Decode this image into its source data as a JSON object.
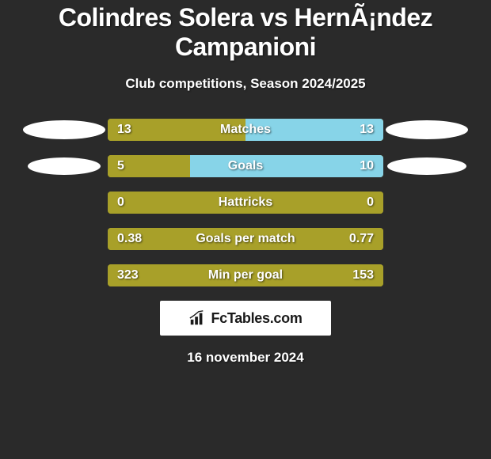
{
  "title": "Colindres Solera vs HernÃ¡ndez Campanioni",
  "subtitle": "Club competitions, Season 2024/2025",
  "colors": {
    "background": "#2a2a2a",
    "bar_left": "#a8a029",
    "bar_right": "#87d4e8",
    "text": "#ffffff",
    "avatar": "#ffffff",
    "logo_bg": "#ffffff",
    "logo_text": "#1a1a1a"
  },
  "stats": [
    {
      "label": "Matches",
      "left_val": "13",
      "right_val": "13",
      "left_pct": 50,
      "right_pct": 50,
      "show_avatars": true,
      "avatar_left_w": 104,
      "avatar_left_h": 24,
      "avatar_right_w": 104,
      "avatar_right_h": 24
    },
    {
      "label": "Goals",
      "left_val": "5",
      "right_val": "10",
      "left_pct": 30,
      "right_pct": 70,
      "show_avatars": true,
      "avatar_left_w": 92,
      "avatar_left_h": 22,
      "avatar_right_w": 100,
      "avatar_right_h": 22
    },
    {
      "label": "Hattricks",
      "left_val": "0",
      "right_val": "0",
      "left_pct": 100,
      "right_pct": 0,
      "show_avatars": false
    },
    {
      "label": "Goals per match",
      "left_val": "0.38",
      "right_val": "0.77",
      "left_pct": 100,
      "right_pct": 0,
      "show_avatars": false
    },
    {
      "label": "Min per goal",
      "left_val": "323",
      "right_val": "153",
      "left_pct": 100,
      "right_pct": 0,
      "show_avatars": false
    }
  ],
  "logo_text": "FcTables.com",
  "date": "16 november 2024"
}
